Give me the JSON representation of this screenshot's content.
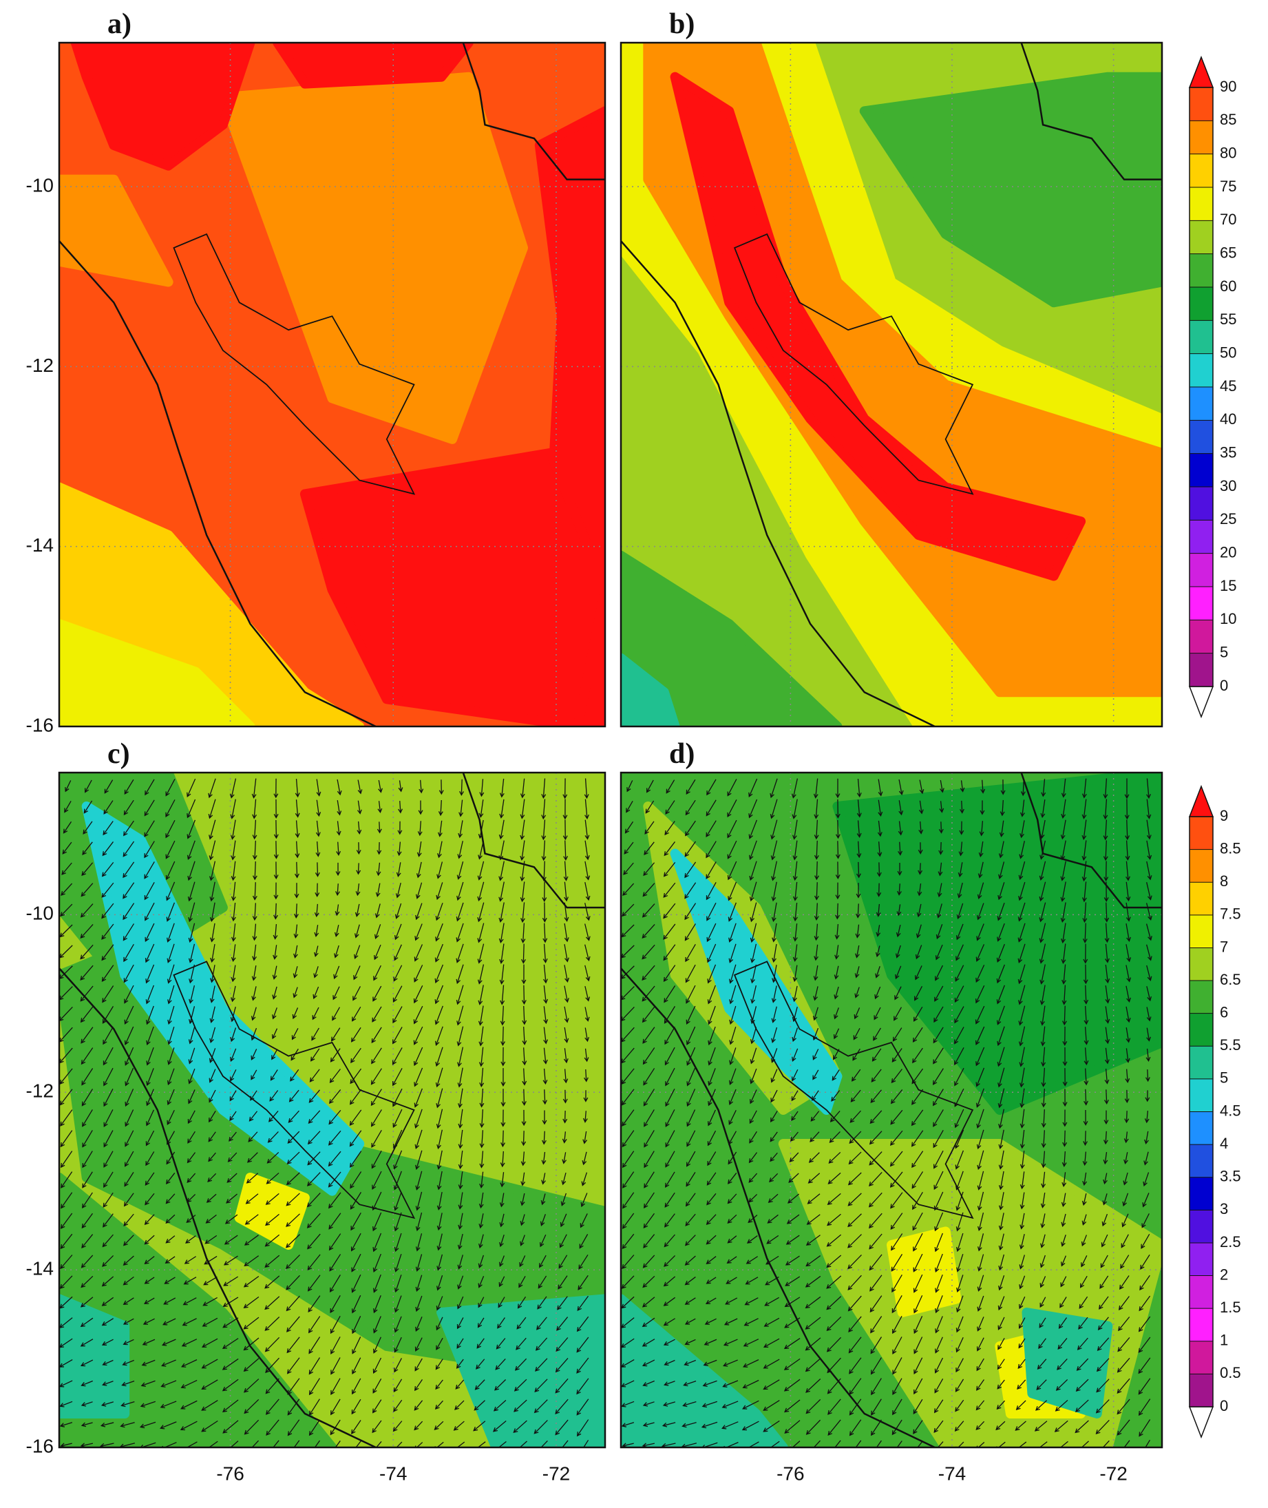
{
  "panels": [
    {
      "label": "a)"
    },
    {
      "label": "b)"
    },
    {
      "label": "c)"
    },
    {
      "label": "d)"
    }
  ],
  "axes": {
    "xlim": [
      -78.1,
      -71.4
    ],
    "ylim": [
      -16,
      -8.4
    ],
    "xticks": [
      -76,
      -74,
      -72
    ],
    "yticks": [
      -10,
      -12,
      -14,
      -16
    ],
    "grid": true
  },
  "colors": [
    "#a0148c",
    "#d0189c",
    "#ff20ff",
    "#d020e0",
    "#9020f0",
    "#5010e0",
    "#0000d0",
    "#2050e0",
    "#1e90ff",
    "#20d0d0",
    "#20c090",
    "#10a030",
    "#40b030",
    "#a0d020",
    "#f0f000",
    "#ffd000",
    "#ff9000",
    "#ff5010"
  ],
  "over_color": "#ff1010",
  "under_color": "#ffffff",
  "colorbars": [
    {
      "levels": [
        0,
        5,
        10,
        15,
        20,
        25,
        30,
        35,
        40,
        45,
        50,
        55,
        60,
        65,
        70,
        75,
        80,
        85,
        90
      ]
    },
    {
      "levels": [
        0,
        0.5,
        1,
        1.5,
        2,
        2.5,
        3,
        3.5,
        4,
        4.5,
        5,
        5.5,
        6,
        6.5,
        7,
        7.5,
        8,
        8.5,
        9
      ]
    }
  ]
}
